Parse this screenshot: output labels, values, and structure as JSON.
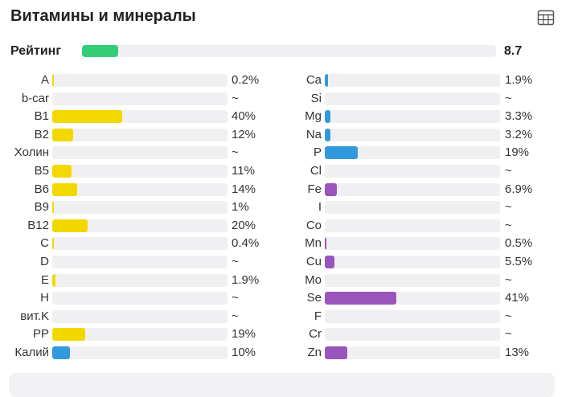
{
  "title": "Витамины и минералы",
  "header_icon": "table-icon",
  "rating": {
    "label": "Рейтинг",
    "value": "8.7",
    "fraction": 0.087,
    "color": "#33cc77"
  },
  "colors": {
    "yellow": "#f3d800",
    "blue": "#3399dd",
    "purple": "#9955bb",
    "track": "#f0f0f2"
  },
  "vitamins": [
    {
      "label": "A",
      "value": "0.2%",
      "fraction": 0.002,
      "color": "yellow"
    },
    {
      "label": "b-car",
      "value": "~",
      "fraction": 0,
      "color": "yellow"
    },
    {
      "label": "B1",
      "value": "40%",
      "fraction": 0.4,
      "color": "yellow"
    },
    {
      "label": "B2",
      "value": "12%",
      "fraction": 0.12,
      "color": "yellow"
    },
    {
      "label": "Холин",
      "value": "~",
      "fraction": 0,
      "color": "yellow"
    },
    {
      "label": "B5",
      "value": "11%",
      "fraction": 0.11,
      "color": "yellow"
    },
    {
      "label": "B6",
      "value": "14%",
      "fraction": 0.14,
      "color": "yellow"
    },
    {
      "label": "B9",
      "value": "1%",
      "fraction": 0.01,
      "color": "yellow"
    },
    {
      "label": "B12",
      "value": "20%",
      "fraction": 0.2,
      "color": "yellow"
    },
    {
      "label": "C",
      "value": "0.4%",
      "fraction": 0.004,
      "color": "yellow"
    },
    {
      "label": "D",
      "value": "~",
      "fraction": 0,
      "color": "yellow"
    },
    {
      "label": "E",
      "value": "1.9%",
      "fraction": 0.019,
      "color": "yellow"
    },
    {
      "label": "H",
      "value": "~",
      "fraction": 0,
      "color": "yellow"
    },
    {
      "label": "вит.K",
      "value": "~",
      "fraction": 0,
      "color": "yellow"
    },
    {
      "label": "PP",
      "value": "19%",
      "fraction": 0.19,
      "color": "yellow"
    },
    {
      "label": "Калий",
      "value": "10%",
      "fraction": 0.1,
      "color": "blue"
    }
  ],
  "minerals": [
    {
      "label": "Ca",
      "value": "1.9%",
      "fraction": 0.019,
      "color": "blue"
    },
    {
      "label": "Si",
      "value": "~",
      "fraction": 0,
      "color": "blue"
    },
    {
      "label": "Mg",
      "value": "3.3%",
      "fraction": 0.033,
      "color": "blue"
    },
    {
      "label": "Na",
      "value": "3.2%",
      "fraction": 0.032,
      "color": "blue"
    },
    {
      "label": "P",
      "value": "19%",
      "fraction": 0.19,
      "color": "blue"
    },
    {
      "label": "Cl",
      "value": "~",
      "fraction": 0,
      "color": "blue"
    },
    {
      "label": "Fe",
      "value": "6.9%",
      "fraction": 0.069,
      "color": "purple"
    },
    {
      "label": "I",
      "value": "~",
      "fraction": 0,
      "color": "purple"
    },
    {
      "label": "Co",
      "value": "~",
      "fraction": 0,
      "color": "purple"
    },
    {
      "label": "Mn",
      "value": "0.5%",
      "fraction": 0.005,
      "color": "purple"
    },
    {
      "label": "Cu",
      "value": "5.5%",
      "fraction": 0.055,
      "color": "purple"
    },
    {
      "label": "Mo",
      "value": "~",
      "fraction": 0,
      "color": "purple"
    },
    {
      "label": "Se",
      "value": "41%",
      "fraction": 0.41,
      "color": "purple"
    },
    {
      "label": "F",
      "value": "~",
      "fraction": 0,
      "color": "purple"
    },
    {
      "label": "Cr",
      "value": "~",
      "fraction": 0,
      "color": "purple"
    },
    {
      "label": "Zn",
      "value": "13%",
      "fraction": 0.13,
      "color": "purple"
    }
  ]
}
